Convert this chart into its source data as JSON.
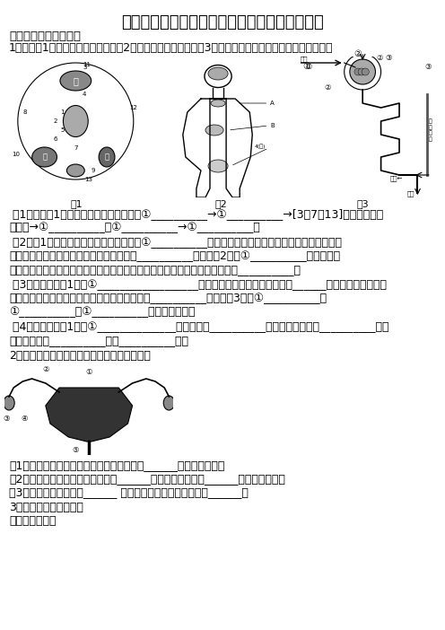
{
  "title": "黑龙江省伊春市七年级第二学期生物经典问答题",
  "section1_bold": "非选择题有答案含解析",
  "q1_intro": "1、根据图1（血液循环示意图）、图2（内分泌腺示意图）、图3（尿液形成示意图）完成下列四个小题。",
  "q1_1_line1": " （1）根据图1，补充完整体循环的过程：①__________→①__________→[3、7、13]全身各处毛细",
  "q1_1_line2": "血管网→①__________、①__________→①__________。",
  "q1_2_line1": " （2）图1中食物消化和吸收的主要场所是①__________，血液流经此处后葡萄糖的浓度会大量增加，",
  "q1_2_line2": "与葡萄糖的吸收、利用和转换有关的激素是__________，是由图2中的①__________分泌的，激",
  "q1_2_line3": "素能对人体的生命活动起调节作用，但对人体生命活动起主要调节作用的还是__________。",
  "q1_3_line1": " （3）血液流经图1中的①__________________后，血液中多余的水、无机盐和______会大量减少，该器官",
  "q1_3_line2": "是形成尿液的主要器官，形成尿液的基本单位是__________，它由图3中的①__________、",
  "q1_3_line3": "①__________和①__________三部分构成的。",
  "q1_4_line1": " （4）血液流经图1中的①______________后血液中的__________气体会大量减少，__________大量",
  "q1_4_line2": "增加，血液由__________血变__________直。",
  "q2_intro": "2．如图为女性生殖系统的一部分，据图回答：",
  "q2_1": "（1）与卵细胞结合形成受精卵是在图中数字______所示的结构内。",
  "q2_2": "（2）受精卵不断地进行分裂，形成______并且埋入图中数字______所示的结构内。",
  "q2_3": "（3）成熟后从图中数字______ 所示的结构排出体外的过程叫______。",
  "q3_intro": "3．知识应用，解决问题",
  "q3_sub": "（一）预习思考",
  "bg_color": "#ffffff",
  "text_color": "#000000",
  "title_fontsize": 13,
  "body_fontsize": 9,
  "bold_fontsize": 9.5
}
